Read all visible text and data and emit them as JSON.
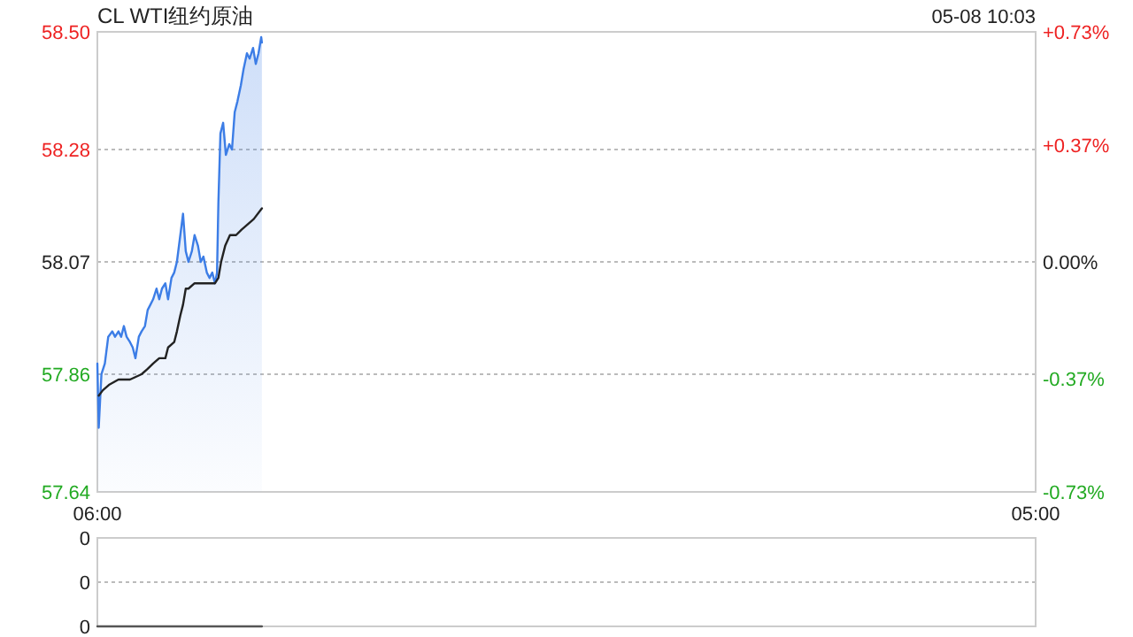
{
  "chart_data": [
    {
      "type": "line",
      "title": "CL WTI纽约原油",
      "subtitle": "05-08 10:03",
      "xlim": [
        "--05-08T06:00",
        "--05-09T05:00"
      ],
      "xticks": [
        {
          "value": "--05-08T06:00",
          "label": "06:00"
        },
        {
          "value": "--05-09T05:00",
          "label": "05:00"
        }
      ],
      "ylim": [
        57.64,
        58.5
      ],
      "yticks": [
        57.64,
        57.86,
        58.07,
        58.28,
        {
          "value": 58.5,
          "label": "58.50"
        }
      ],
      "y2lim": [
        -0.73,
        0.73
      ],
      "y2ticks": [
        {
          "value": -0.73,
          "label": "-0.73%"
        },
        {
          "value": -0.37,
          "label": "-0.37%"
        },
        {
          "value": 0,
          "label": "0.00%"
        },
        {
          "value": 0.37,
          "label": "+0.37%"
        },
        {
          "value": 0.73,
          "label": "+0.73%"
        }
      ],
      "grid": "y",
      "series": [
        {
          "type": "area",
          "color": "#3c7de6",
          "x": [
            "--05-08T06:00",
            "--05-08T06:02",
            "--05-08T06:06",
            "--05-08T06:11",
            "--05-08T06:16",
            "--05-08T06:22",
            "--05-08T06:26",
            "--05-08T06:31",
            "--05-08T06:35",
            "--05-08T06:39",
            "--05-08T06:43",
            "--05-08T06:48",
            "--05-08T06:52",
            "--05-08T06:56",
            "--05-08T07:01",
            "--05-08T07:05",
            "--05-08T07:10",
            "--05-08T07:14",
            "--05-08T07:18",
            "--05-08T07:22",
            "--05-08T07:27",
            "--05-08T07:31",
            "--05-08T07:35",
            "--05-08T07:40",
            "--05-08T07:44",
            "--05-08T07:49",
            "--05-08T07:53",
            "--05-08T07:57",
            "--05-08T08:02",
            "--05-08T08:06",
            "--05-08T08:10",
            "--05-08T08:14",
            "--05-08T08:19",
            "--05-08T08:23",
            "--05-08T08:28",
            "--05-08T08:32",
            "--05-08T08:36",
            "--05-08T08:41",
            "--05-08T08:45",
            "--05-08T08:49",
            "--05-08T08:53",
            "--05-08T08:56",
            "--05-08T08:58",
            "--05-08T09:01",
            "--05-08T09:05",
            "--05-08T09:09",
            "--05-08T09:14",
            "--05-08T09:18",
            "--05-08T09:22",
            "--05-08T09:26",
            "--05-08T09:31",
            "--05-08T09:35",
            "--05-08T09:40",
            "--05-08T09:44",
            "--05-08T09:49",
            "--05-08T09:53",
            "--05-08T09:57",
            "--05-08T10:01",
            "--05-08T10:02"
          ],
          "values": [
            57.88,
            57.76,
            57.86,
            57.88,
            57.93,
            57.94,
            57.93,
            57.94,
            57.93,
            57.95,
            57.93,
            57.92,
            57.91,
            57.89,
            57.93,
            57.94,
            57.95,
            57.98,
            57.99,
            58.0,
            58.02,
            58.0,
            58.02,
            58.03,
            58.0,
            58.04,
            58.05,
            58.07,
            58.12,
            58.16,
            58.09,
            58.07,
            58.09,
            58.12,
            58.1,
            58.07,
            58.08,
            58.05,
            58.04,
            58.05,
            58.03,
            58.05,
            58.18,
            58.31,
            58.33,
            58.27,
            58.29,
            58.28,
            58.35,
            58.37,
            58.4,
            58.43,
            58.46,
            58.45,
            58.47,
            58.44,
            58.46,
            58.49,
            58.48
          ]
        },
        {
          "type": "line",
          "color": "#222222",
          "x": [
            "--05-08T06:02",
            "--05-08T06:08",
            "--05-08T06:17",
            "--05-08T06:31",
            "--05-08T06:48",
            "--05-08T07:05",
            "--05-08T07:14",
            "--05-08T07:22",
            "--05-08T07:31",
            "--05-08T07:40",
            "--05-08T07:44",
            "--05-08T07:53",
            "--05-08T07:57",
            "--05-08T08:02",
            "--05-08T08:06",
            "--05-08T08:10",
            "--05-08T08:14",
            "--05-08T08:23",
            "--05-08T08:41",
            "--05-08T08:53",
            "--05-08T08:58",
            "--05-08T09:02",
            "--05-08T09:08",
            "--05-08T09:15",
            "--05-08T09:24",
            "--05-08T09:32",
            "--05-08T09:41",
            "--05-08T09:50",
            "--05-08T10:02"
          ],
          "values": [
            57.82,
            57.83,
            57.84,
            57.85,
            57.85,
            57.86,
            57.87,
            57.88,
            57.89,
            57.89,
            57.91,
            57.92,
            57.94,
            57.97,
            57.99,
            58.02,
            58.02,
            58.03,
            58.03,
            58.03,
            58.04,
            58.07,
            58.1,
            58.12,
            58.12,
            58.13,
            58.14,
            58.15,
            58.17
          ]
        }
      ]
    },
    {
      "type": "line",
      "xlim": [
        "--05-08T06:00",
        "--05-09T05:00"
      ],
      "ylim": [
        0,
        0.4
      ],
      "yticks": [
        0,
        {
          "value": 0.2,
          "label": "0"
        },
        {
          "value": 0.4,
          "label": "0"
        }
      ],
      "tick_labels": "y",
      "grid": "y",
      "series": [
        {
          "type": "line",
          "color": "#555555",
          "x": [
            "--05-08T06:00",
            "--05-08T10:02"
          ],
          "values": [
            0,
            0
          ]
        }
      ]
    }
  ]
}
